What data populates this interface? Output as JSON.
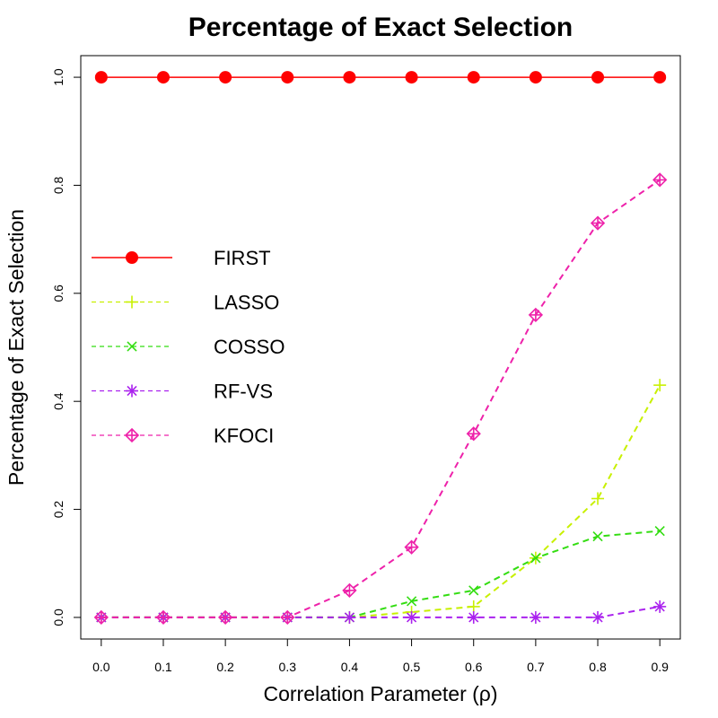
{
  "chart_data": {
    "type": "line",
    "title": "Percentage of Exact Selection",
    "xlabel": "Correlation Parameter (ρ)",
    "ylabel": "Percentage of Exact Selection",
    "x": [
      0.0,
      0.1,
      0.2,
      0.3,
      0.4,
      0.5,
      0.6,
      0.7,
      0.8,
      0.9
    ],
    "x_tick_labels": [
      "0.0",
      "0.1",
      "0.2",
      "0.3",
      "0.4",
      "0.5",
      "0.6",
      "0.7",
      "0.8",
      "0.9"
    ],
    "y_ticks": [
      0.0,
      0.2,
      0.4,
      0.6,
      0.8,
      1.0
    ],
    "y_tick_labels": [
      "0.0",
      "0.2",
      "0.4",
      "0.6",
      "0.8",
      "1.0"
    ],
    "xlim": [
      -0.033,
      0.933
    ],
    "ylim": [
      -0.04,
      1.04
    ],
    "grid": false,
    "legend_position": "left",
    "series": [
      {
        "name": "FIRST",
        "color": "#ff0000",
        "line": "solid",
        "marker": "filled-circle",
        "values": [
          1.0,
          1.0,
          1.0,
          1.0,
          1.0,
          1.0,
          1.0,
          1.0,
          1.0,
          1.0
        ]
      },
      {
        "name": "LASSO",
        "color": "#c8f000",
        "line": "dashed",
        "marker": "plus",
        "values": [
          0.0,
          0.0,
          0.0,
          0.0,
          0.0,
          0.01,
          0.02,
          0.11,
          0.22,
          0.43
        ]
      },
      {
        "name": "COSSO",
        "color": "#33dd11",
        "line": "dashed",
        "marker": "cross",
        "values": [
          0.0,
          0.0,
          0.0,
          0.0,
          0.0,
          0.03,
          0.05,
          0.11,
          0.15,
          0.16
        ]
      },
      {
        "name": "RF-VS",
        "color": "#aa22ee",
        "line": "dashed",
        "marker": "asterisk",
        "values": [
          0.0,
          0.0,
          0.0,
          0.0,
          0.0,
          0.0,
          0.0,
          0.0,
          0.0,
          0.02
        ]
      },
      {
        "name": "KFOCI",
        "color": "#ee22aa",
        "line": "dashed",
        "marker": "diamond-plus",
        "values": [
          0.0,
          0.0,
          0.0,
          0.0,
          0.05,
          0.13,
          0.34,
          0.56,
          0.73,
          0.81
        ]
      }
    ]
  }
}
